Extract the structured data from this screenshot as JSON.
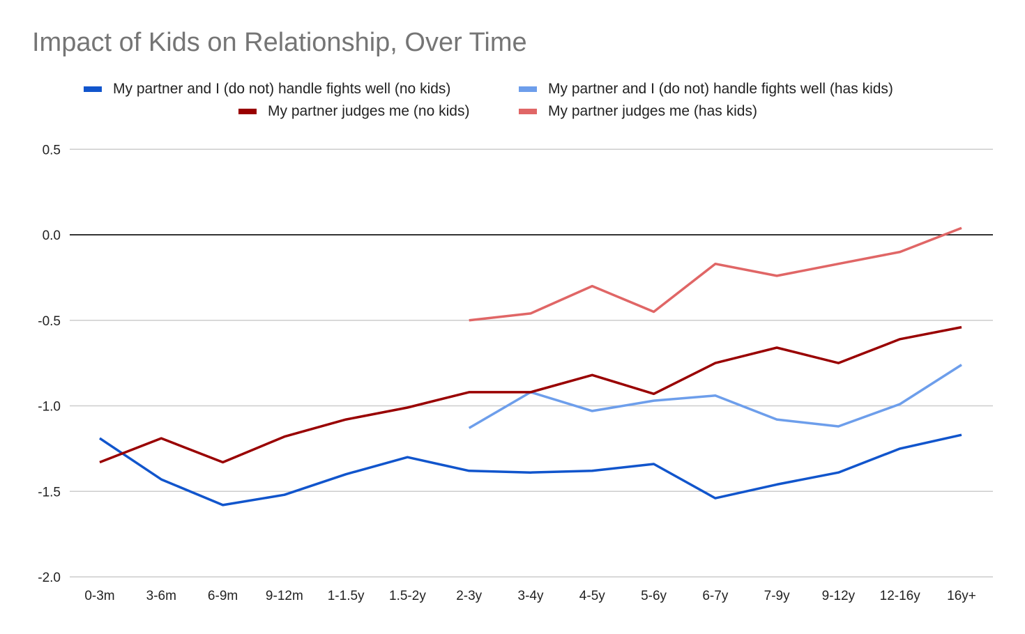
{
  "chart_data": {
    "type": "line",
    "title": "Impact of Kids on Relationship, Over Time",
    "xlabel": "",
    "ylabel": "",
    "ylim": [
      -2.0,
      0.5
    ],
    "yticks": [
      0.5,
      0.0,
      -0.5,
      -1.0,
      -1.5,
      -2.0
    ],
    "ytick_labels": [
      "0.5",
      "0.0",
      "-0.5",
      "-1.0",
      "-1.5",
      "-2.0"
    ],
    "grid": true,
    "legend_position": "top",
    "categories": [
      "0-3m",
      "3-6m",
      "6-9m",
      "9-12m",
      "1-1.5y",
      "1.5-2y",
      "2-3y",
      "3-4y",
      "4-5y",
      "5-6y",
      "6-7y",
      "7-9y",
      "9-12y",
      "12-16y",
      "16y+"
    ],
    "series": [
      {
        "name": "My partner and I (do not) handle fights well (no kids)",
        "color": "#1155cc",
        "values": [
          -1.19,
          -1.43,
          -1.58,
          -1.52,
          -1.4,
          -1.3,
          -1.38,
          -1.39,
          -1.38,
          -1.34,
          -1.54,
          -1.46,
          -1.39,
          -1.25,
          -1.17
        ]
      },
      {
        "name": "My partner and I (do not) handle fights well (has kids)",
        "color": "#6d9eeb",
        "values": [
          null,
          null,
          null,
          null,
          null,
          null,
          -1.13,
          -0.92,
          -1.03,
          -0.97,
          -0.94,
          -1.08,
          -1.12,
          -0.99,
          -0.76
        ]
      },
      {
        "name": "My partner judges me (no kids)",
        "color": "#990000",
        "values": [
          -1.33,
          -1.19,
          -1.33,
          -1.18,
          -1.08,
          -1.01,
          -0.92,
          -0.92,
          -0.82,
          -0.93,
          -0.75,
          -0.66,
          -0.75,
          -0.61,
          -0.54
        ]
      },
      {
        "name": "My partner judges me (has kids)",
        "color": "#e06666",
        "values": [
          null,
          null,
          null,
          null,
          null,
          null,
          -0.5,
          -0.46,
          -0.3,
          -0.45,
          -0.17,
          -0.24,
          -0.17,
          -0.1,
          0.04
        ]
      }
    ]
  },
  "legend": {
    "items": [
      {
        "label": "My partner and I (do not) handle fights well (no kids)",
        "color": "#1155cc"
      },
      {
        "label": "My partner and I (do not) handle fights well (has kids)",
        "color": "#6d9eeb"
      },
      {
        "label": "My partner judges me (no kids)",
        "color": "#990000"
      },
      {
        "label": "My partner judges me (has kids)",
        "color": "#e06666"
      }
    ]
  },
  "colors": {
    "title": "#757575",
    "gridline": "#cccccc",
    "zero_line": "#333333",
    "text": "#222222"
  }
}
